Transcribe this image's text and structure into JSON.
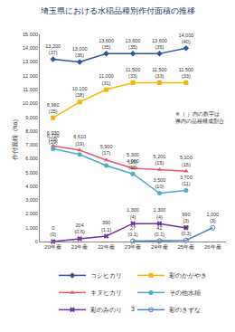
{
  "chart_data": {
    "type": "line",
    "title": "埼玉県における水稲品種別作付面積の推移",
    "y_label": "作付面積（ha）",
    "categories": [
      "20年産",
      "21年産",
      "22年産",
      "23年産",
      "24年産",
      "25年産",
      "26年産"
    ],
    "ylim": [
      0,
      15000
    ],
    "yticks": [
      0,
      {
        "value": 1000,
        "label": "1,000"
      },
      {
        "value": 2000,
        "label": "2,000"
      },
      {
        "value": 3000,
        "label": "3,000"
      },
      {
        "value": 4000,
        "label": "4,000"
      },
      {
        "value": 5000,
        "label": "5,000"
      },
      {
        "value": 6000,
        "label": "6,000"
      },
      {
        "value": 7000,
        "label": "7,000"
      },
      {
        "value": 8000,
        "label": "8,000"
      },
      {
        "value": 9000,
        "label": "9,000"
      },
      {
        "value": 10000,
        "label": "10,000"
      },
      {
        "value": 11000,
        "label": "11,000"
      },
      {
        "value": 12000,
        "label": "12,000"
      },
      {
        "value": 13000,
        "label": "13,000"
      },
      {
        "value": 14000,
        "label": "14,000"
      },
      {
        "value": 15000,
        "label": "15,000"
      }
    ],
    "grid": false,
    "legend": "bottom",
    "data_labels": true,
    "annotation": "※（ ）内の数字は\n県内の品種構成割合",
    "footer": "3",
    "series": [
      {
        "name": "コシヒカリ",
        "color": "#2e5597",
        "marker": "diamond",
        "values": [
          13200,
          13000,
          13600,
          13600,
          13600,
          14000,
          null
        ],
        "value_labels": [
          "13,200\n(37)",
          "13,000\n(36)",
          "13,600\n(35)",
          "13,600\n(35)",
          "13,600\n(35)",
          "14,000\n(40)",
          null
        ]
      },
      {
        "name": "彩のかがやき",
        "color": "#f2b705",
        "marker": "square",
        "values": [
          8960,
          10100,
          11000,
          11500,
          11500,
          11500,
          null
        ],
        "value_labels": [
          "8,960\n(25)",
          "10,100\n(28)",
          "11,000\n(31)",
          "11,500\n(33)",
          "11,500\n(33)",
          "11,500\n(33)",
          null
        ]
      },
      {
        "name": "キヌヒカリ",
        "color": "#e05a6e",
        "marker": "triangle-up",
        "values": [
          6930,
          6610,
          5900,
          5300,
          5200,
          5100,
          null
        ],
        "value_labels": [
          "6,930\n(19)",
          "6,610\n(19)",
          "5,900\n(17)",
          "5,300\n(15)",
          "5,200\n(15)",
          "5,100\n(15)",
          null
        ]
      },
      {
        "name": "その他水稲",
        "color": "#4bacc6",
        "marker": "circle",
        "values": [
          6720,
          6300,
          5500,
          4900,
          3500,
          3700,
          null
        ],
        "value_labels": [
          "6,720\n(19)",
          null,
          null,
          "4,900\n(13)",
          "3,500\n(10)",
          "3,700\n(11)",
          null
        ]
      },
      {
        "name": "彩のみのり",
        "color": "#7030a0",
        "marker": "x",
        "values": [
          0,
          204,
          390,
          1300,
          1300,
          990,
          null
        ],
        "value_labels": [
          "0\n(0)",
          "204\n(0.6)",
          "390\n(1.1)",
          "1,300\n(4)",
          "1,300\n(4)",
          "990\n(3)",
          null
        ]
      },
      {
        "name": "彩のきずな",
        "color": "#4f81bd",
        "marker": "circle-open",
        "values": [
          null,
          null,
          null,
          27,
          42,
          90,
          1000
        ],
        "value_labels": [
          null,
          null,
          null,
          "27\n(0.1)",
          "42\n(0.1)",
          "90\n(0.3)",
          "1,000\n(3)"
        ]
      }
    ]
  }
}
